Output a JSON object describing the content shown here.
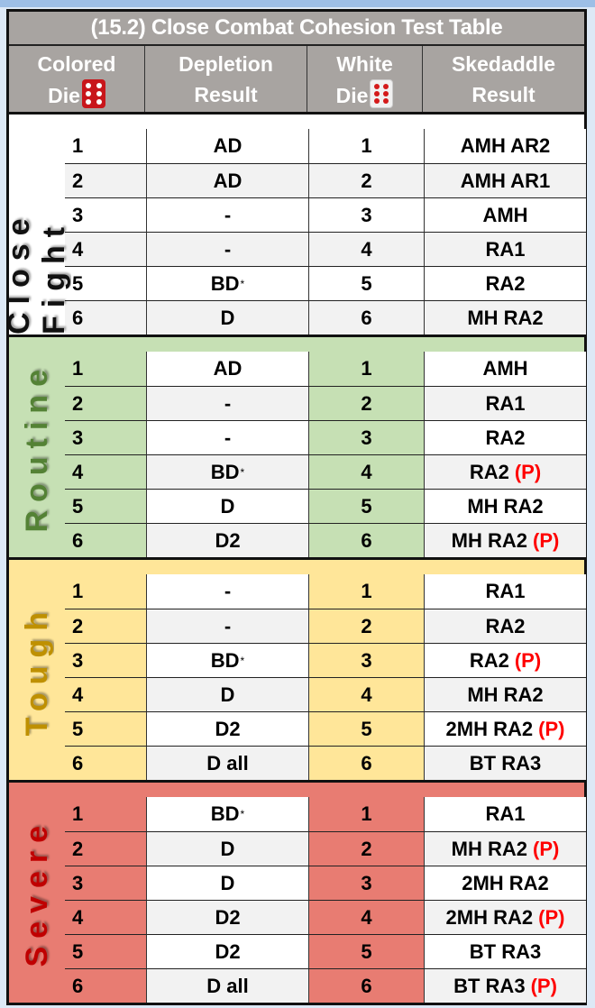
{
  "title": "(15.2) Close Combat Cohesion Test Table",
  "headers": {
    "colored_die": [
      "Colored",
      "Die"
    ],
    "depletion": [
      "Depletion",
      "Result"
    ],
    "white_die": [
      "White",
      "Die"
    ],
    "skedaddle": [
      "Skedaddle",
      "Result"
    ]
  },
  "icons": {
    "colored_die": "red-die-six-icon",
    "white_die": "white-die-six-icon"
  },
  "colors": {
    "header": "#a8a4a1",
    "close_fight": "#ffffff",
    "routine": "#c6e0b4",
    "tough": "#ffe699",
    "severe": "#e87c72",
    "penalty_text": "#ff0000"
  },
  "sections": [
    {
      "label": "Close Fight",
      "bg": "#ffffff",
      "label_color": "#111111",
      "rows": [
        {
          "colored": "1",
          "depletion": "AD",
          "mark": "",
          "white": "1",
          "skedaddle": "AMH AR2",
          "p": ""
        },
        {
          "colored": "2",
          "depletion": "AD",
          "mark": "",
          "white": "2",
          "skedaddle": "AMH AR1",
          "p": ""
        },
        {
          "colored": "3",
          "depletion": "-",
          "mark": "",
          "white": "3",
          "skedaddle": "AMH",
          "p": ""
        },
        {
          "colored": "4",
          "depletion": "-",
          "mark": "",
          "white": "4",
          "skedaddle": "RA1",
          "p": ""
        },
        {
          "colored": "5",
          "depletion": "BD",
          "mark": "*",
          "white": "5",
          "skedaddle": "RA2",
          "p": ""
        },
        {
          "colored": "6",
          "depletion": "D",
          "mark": "",
          "white": "6",
          "skedaddle": "MH RA2",
          "p": ""
        }
      ]
    },
    {
      "label": "Routine",
      "bg": "#c6e0b4",
      "label_color": "#548235",
      "rows": [
        {
          "colored": "1",
          "depletion": "AD",
          "mark": "",
          "white": "1",
          "skedaddle": "AMH",
          "p": ""
        },
        {
          "colored": "2",
          "depletion": "-",
          "mark": "",
          "white": "2",
          "skedaddle": "RA1",
          "p": ""
        },
        {
          "colored": "3",
          "depletion": "-",
          "mark": "",
          "white": "3",
          "skedaddle": "RA2",
          "p": ""
        },
        {
          "colored": "4",
          "depletion": "BD",
          "mark": "*",
          "white": "4",
          "skedaddle": "RA2",
          "p": "(P)"
        },
        {
          "colored": "5",
          "depletion": "D",
          "mark": "",
          "white": "5",
          "skedaddle": "MH RA2",
          "p": ""
        },
        {
          "colored": "6",
          "depletion": "D2",
          "mark": "",
          "white": "6",
          "skedaddle": "MH RA2",
          "p": "(P)"
        }
      ]
    },
    {
      "label": "Tough",
      "bg": "#ffe699",
      "label_color": "#bf9000",
      "rows": [
        {
          "colored": "1",
          "depletion": "-",
          "mark": "",
          "white": "1",
          "skedaddle": "RA1",
          "p": ""
        },
        {
          "colored": "2",
          "depletion": "-",
          "mark": "",
          "white": "2",
          "skedaddle": "RA2",
          "p": ""
        },
        {
          "colored": "3",
          "depletion": "BD",
          "mark": "*",
          "white": "3",
          "skedaddle": "RA2",
          "p": "(P)"
        },
        {
          "colored": "4",
          "depletion": "D",
          "mark": "",
          "white": "4",
          "skedaddle": "MH RA2",
          "p": ""
        },
        {
          "colored": "5",
          "depletion": "D2",
          "mark": "",
          "white": "5",
          "skedaddle": "2MH RA2",
          "p": "(P)"
        },
        {
          "colored": "6",
          "depletion": "D all",
          "mark": "",
          "white": "6",
          "skedaddle": "BT RA3",
          "p": ""
        }
      ]
    },
    {
      "label": "Severe",
      "bg": "#e87c72",
      "label_color": "#c00000",
      "rows": [
        {
          "colored": "1",
          "depletion": "BD",
          "mark": "*",
          "white": "1",
          "skedaddle": "RA1",
          "p": ""
        },
        {
          "colored": "2",
          "depletion": "D",
          "mark": "",
          "white": "2",
          "skedaddle": "MH RA2",
          "p": "(P)"
        },
        {
          "colored": "3",
          "depletion": "D",
          "mark": "",
          "white": "3",
          "skedaddle": "2MH RA2",
          "p": ""
        },
        {
          "colored": "4",
          "depletion": "D2",
          "mark": "",
          "white": "4",
          "skedaddle": "2MH RA2",
          "p": "(P)"
        },
        {
          "colored": "5",
          "depletion": "D2",
          "mark": "",
          "white": "5",
          "skedaddle": "BT RA3",
          "p": ""
        },
        {
          "colored": "6",
          "depletion": "D all",
          "mark": "",
          "white": "6",
          "skedaddle": "BT RA3",
          "p": "(P)"
        }
      ]
    }
  ]
}
